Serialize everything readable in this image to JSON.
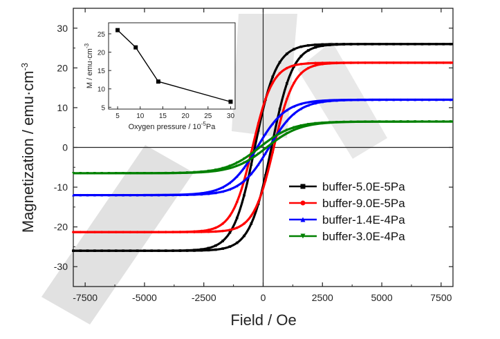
{
  "chart_data": [
    {
      "type": "line",
      "xlabel": "Field / Oe",
      "ylabel": "Magnetization / emu·cm",
      "ylabel_superscript": "-3",
      "xlim": [
        -8000,
        8000
      ],
      "ylim": [
        -35,
        35
      ],
      "xticks": [
        -7500,
        -5000,
        -2500,
        0,
        2500,
        5000,
        7500
      ],
      "yticks": [
        -30,
        -20,
        -10,
        0,
        10,
        20,
        30
      ],
      "grid": false,
      "legend_position": "bottom-right",
      "series": [
        {
          "name": "buffer-5.0E-5Pa",
          "color": "#000000",
          "marker": "square",
          "Ms": 26.0,
          "Hc": 350,
          "width": 900
        },
        {
          "name": "buffer-9.0E-5Pa",
          "color": "#ff0000",
          "marker": "circle",
          "Ms": 21.3,
          "Hc": 450,
          "width": 850
        },
        {
          "name": "buffer-1.4E-4Pa",
          "color": "#0000ff",
          "marker": "triangle-up",
          "Ms": 12.0,
          "Hc": 250,
          "width": 1200
        },
        {
          "name": "buffer-3.0E-4Pa",
          "color": "#008000",
          "marker": "triangle-down",
          "Ms": 6.5,
          "Hc": 150,
          "width": 1400
        }
      ]
    },
    {
      "type": "line",
      "xlabel": "Oxygen pressure / 10",
      "xlabel_superscript": "-5",
      "xlabel_suffix": "Pa",
      "ylabel": "M / emu·cm",
      "ylabel_superscript": "-3",
      "xlim": [
        3,
        31
      ],
      "ylim": [
        4.5,
        28
      ],
      "xticks": [
        5,
        10,
        15,
        20,
        25,
        30
      ],
      "yticks": [
        5,
        10,
        15,
        20,
        25
      ],
      "x": [
        5,
        9,
        14,
        30
      ],
      "y": [
        26.0,
        21.3,
        12.0,
        6.5
      ],
      "color": "#000000",
      "marker": "square"
    }
  ]
}
